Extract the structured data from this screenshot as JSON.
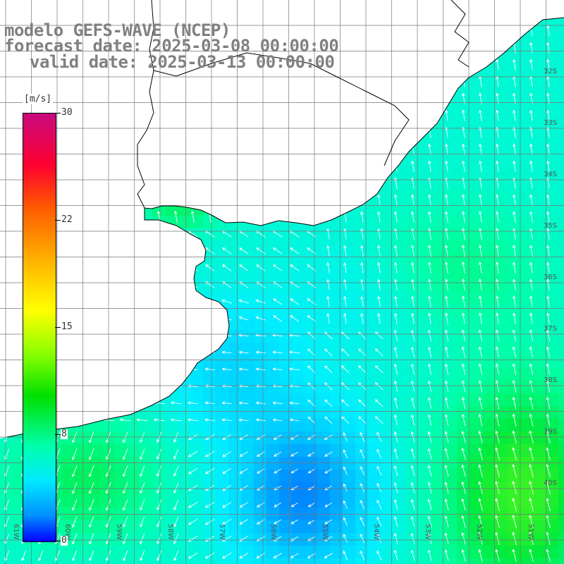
{
  "title": {
    "line1": "modelo GEFS-WAVE (NCEP)",
    "line2": "forecast date: 2025-03-08 00:00:00",
    "line3": "valid date: 2025-03-13 00:00:00"
  },
  "legend": {
    "units": "[m/s]",
    "ticks": [
      "30",
      "22",
      "15",
      "8",
      "0"
    ],
    "tick_values": [
      30,
      22,
      15,
      8,
      0
    ],
    "min": 0,
    "max": 30,
    "colors": [
      "#0000ff",
      "#0090ff",
      "#00e8ff",
      "#00ffb0",
      "#00e000",
      "#8cff00",
      "#ffff00",
      "#ffb000",
      "#ff5a00",
      "#ff0030",
      "#c8097e"
    ]
  },
  "lat_labels": [
    "32S",
    "33S",
    "34S",
    "35S",
    "36S",
    "37S",
    "38S",
    "39S",
    "40S"
  ],
  "lon_labels": [
    "61W",
    "60W",
    "59W",
    "58W",
    "57W",
    "56W",
    "55W",
    "54W",
    "53W",
    "52W",
    "51W"
  ],
  "colors": {
    "land": "#ffffff",
    "coast": "#000000",
    "grid": "#777777",
    "arrow": "#ffffff",
    "title": "#808080"
  }
}
